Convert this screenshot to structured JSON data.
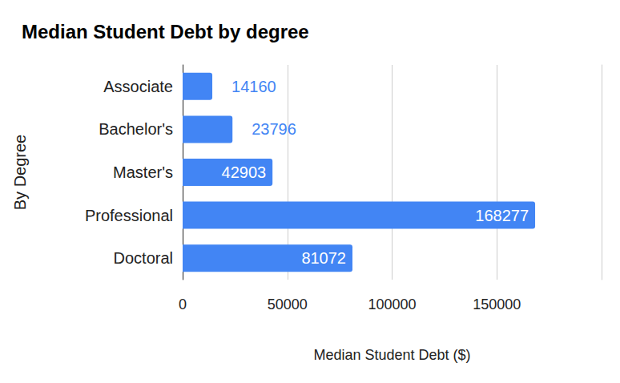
{
  "chart_data": {
    "type": "bar",
    "title": "Median Student Debt by degree",
    "xlabel": "Median Student Debt ($)",
    "ylabel": "By Degree",
    "categories": [
      "Associate",
      "Bachelor's",
      "Master's",
      "Professional",
      "Doctoral"
    ],
    "values": [
      14160,
      23796,
      42903,
      168277,
      81072
    ],
    "color": "#4285f4",
    "orientation": "horizontal",
    "xlim": [
      0,
      200000
    ],
    "xticks": [
      0,
      50000,
      100000,
      150000
    ],
    "grid": true,
    "data_labels": true
  }
}
